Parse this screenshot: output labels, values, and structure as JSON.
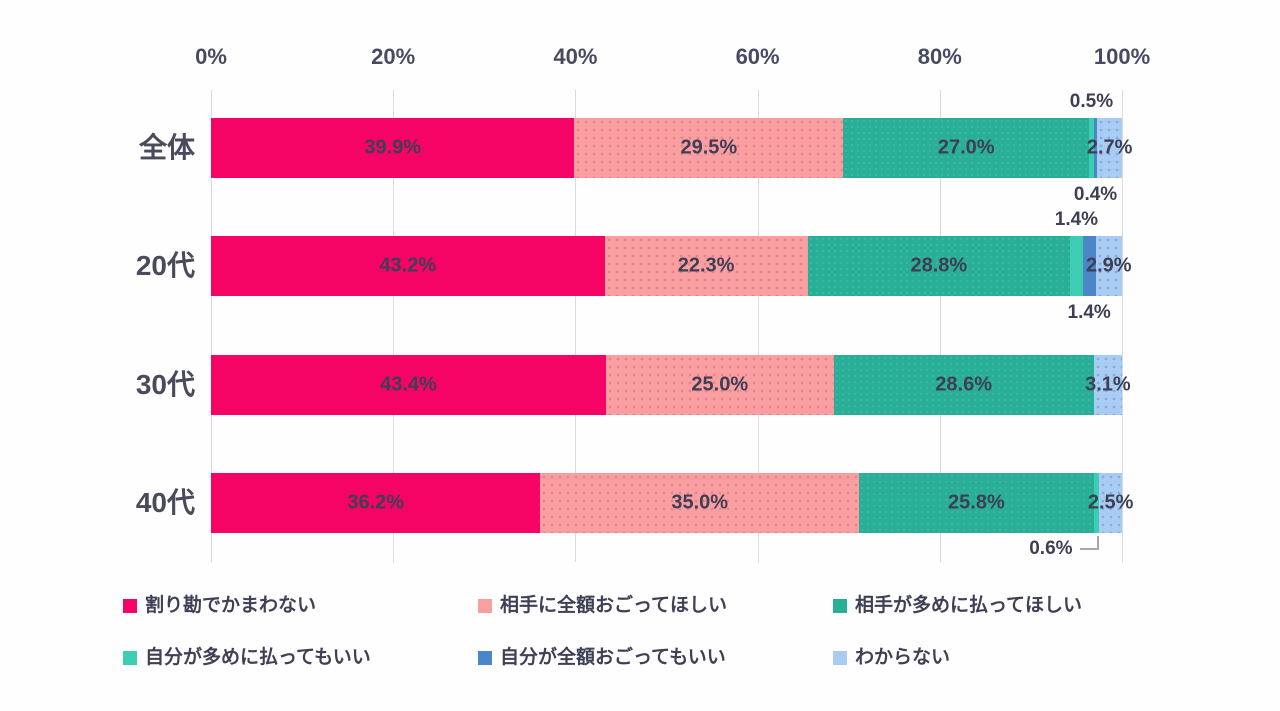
{
  "chart_data": {
    "type": "bar",
    "variant": "horizontal-stacked",
    "title": "",
    "x_axis": {
      "ticks": [
        "0%",
        "20%",
        "40%",
        "60%",
        "80%",
        "100%"
      ],
      "min": 0,
      "max": 100,
      "grid": true
    },
    "categories": [
      "全体",
      "20代",
      "30代",
      "40代"
    ],
    "series": [
      {
        "name": "割り勘でかまわない",
        "color": "#f50465",
        "pattern": "none",
        "values": [
          39.9,
          43.2,
          43.4,
          36.2
        ]
      },
      {
        "name": "相手に全額おごってほしい",
        "color": "#f99fa2",
        "pattern": "dots-salmon",
        "values": [
          29.5,
          22.3,
          25.0,
          35.0
        ]
      },
      {
        "name": "相手が多めに払ってほしい",
        "color": "#29ae98",
        "pattern": "subtle-teal",
        "values": [
          27.0,
          28.8,
          28.6,
          25.8
        ]
      },
      {
        "name": "自分が多めに払ってもいい",
        "color": "#3dcdb3",
        "pattern": "none",
        "values": [
          0.5,
          1.4,
          0.0,
          0.6
        ]
      },
      {
        "name": "自分が全額おごってもいい",
        "color": "#4a86c8",
        "pattern": "none",
        "values": [
          0.4,
          1.4,
          0.0,
          0.0
        ]
      },
      {
        "name": "わからない",
        "color": "#a9ccf3",
        "pattern": "dots-blue",
        "values": [
          2.7,
          2.9,
          3.1,
          2.5
        ]
      }
    ],
    "rows": [
      {
        "category": "全体",
        "segments": [
          {
            "series": 0,
            "value": 39.9,
            "label": "39.9%",
            "label_pos": "inside"
          },
          {
            "series": 1,
            "value": 29.5,
            "label": "29.5%",
            "label_pos": "inside"
          },
          {
            "series": 2,
            "value": 27.0,
            "label": "27.0%",
            "label_pos": "inside"
          },
          {
            "series": 3,
            "value": 0.5,
            "label": "0.5%",
            "label_pos": "above"
          },
          {
            "series": 4,
            "value": 0.4,
            "label": "0.4%",
            "label_pos": "below"
          },
          {
            "series": 5,
            "value": 2.7,
            "label": "2.7%",
            "label_pos": "overflow"
          }
        ]
      },
      {
        "category": "20代",
        "segments": [
          {
            "series": 0,
            "value": 43.2,
            "label": "43.2%",
            "label_pos": "inside"
          },
          {
            "series": 1,
            "value": 22.3,
            "label": "22.3%",
            "label_pos": "inside"
          },
          {
            "series": 2,
            "value": 28.8,
            "label": "28.8%",
            "label_pos": "inside"
          },
          {
            "series": 3,
            "value": 1.4,
            "label": "1.4%",
            "label_pos": "above"
          },
          {
            "series": 4,
            "value": 1.4,
            "label": "1.4%",
            "label_pos": "below"
          },
          {
            "series": 5,
            "value": 2.9,
            "label": "2.9%",
            "label_pos": "overflow"
          }
        ]
      },
      {
        "category": "30代",
        "segments": [
          {
            "series": 0,
            "value": 43.4,
            "label": "43.4%",
            "label_pos": "inside"
          },
          {
            "series": 1,
            "value": 25.0,
            "label": "25.0%",
            "label_pos": "inside"
          },
          {
            "series": 2,
            "value": 28.6,
            "label": "28.6%",
            "label_pos": "inside"
          },
          {
            "series": 3,
            "value": 0.0,
            "label": "",
            "label_pos": "none"
          },
          {
            "series": 4,
            "value": 0.0,
            "label": "",
            "label_pos": "none"
          },
          {
            "series": 5,
            "value": 3.1,
            "label": "3.1%",
            "label_pos": "overflow"
          }
        ]
      },
      {
        "category": "40代",
        "segments": [
          {
            "series": 0,
            "value": 36.2,
            "label": "36.2%",
            "label_pos": "inside"
          },
          {
            "series": 1,
            "value": 35.0,
            "label": "35.0%",
            "label_pos": "inside"
          },
          {
            "series": 2,
            "value": 25.8,
            "label": "25.8%",
            "label_pos": "inside"
          },
          {
            "series": 3,
            "value": 0.6,
            "label": "0.6%",
            "label_pos": "below-leader"
          },
          {
            "series": 4,
            "value": 0.0,
            "label": "",
            "label_pos": "none"
          },
          {
            "series": 5,
            "value": 2.5,
            "label": "2.5%",
            "label_pos": "overflow"
          }
        ]
      },
      {
        "_comment": ""
      }
    ],
    "legend_position": "bottom"
  },
  "legend": {
    "items": [
      {
        "label": "割り勘でかまわない",
        "color": "#f50465"
      },
      {
        "label": "相手に全額おごってほしい",
        "color": "#f99fa2"
      },
      {
        "label": "相手が多めに払ってほしい",
        "color": "#29ae98"
      },
      {
        "label": "自分が多めに払ってもいい",
        "color": "#3dcdb3"
      },
      {
        "label": "自分が全額おごってもいい",
        "color": "#4a86c8"
      },
      {
        "label": "わからない",
        "color": "#a9ccf3"
      }
    ]
  },
  "colors": {
    "grid": "#dadada",
    "tick_text": "#494961",
    "category_text": "#4a4a5c",
    "data_label_text": "#3e3e55",
    "leader_line": "#a8a8a8",
    "background": "#fdfefd"
  }
}
